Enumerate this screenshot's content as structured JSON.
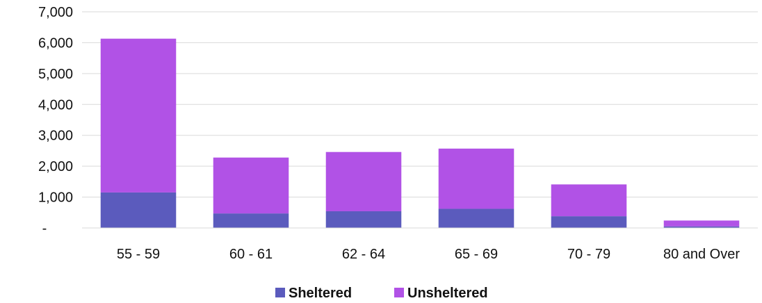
{
  "chart_data": {
    "type": "bar",
    "stacked": true,
    "categories": [
      "55 - 59",
      "60 - 61",
      "62 - 64",
      "65 - 69",
      "70 - 79",
      "80 and Over"
    ],
    "series": [
      {
        "name": "Sheltered",
        "color": "#5b5bbd",
        "values": [
          1150,
          470,
          540,
          620,
          380,
          50
        ]
      },
      {
        "name": "Unsheltered",
        "color": "#b152e6",
        "values": [
          4980,
          1810,
          1920,
          1950,
          1030,
          190
        ]
      }
    ],
    "yticks": [
      0,
      1000,
      2000,
      3000,
      4000,
      5000,
      6000,
      7000
    ],
    "ytick_labels": [
      "-",
      "1,000",
      "2,000",
      "3,000",
      "4,000",
      "5,000",
      "6,000",
      "7,000"
    ],
    "ylim": [
      0,
      7000
    ],
    "title": "",
    "xlabel": "",
    "ylabel": "",
    "grid": true,
    "legend_position": "bottom"
  }
}
